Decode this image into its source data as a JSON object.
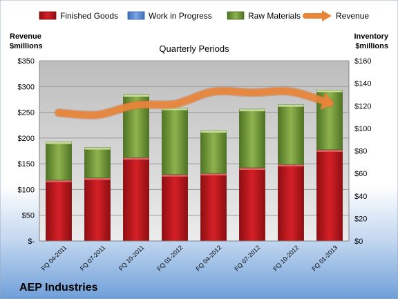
{
  "chart_data": {
    "type": "bar",
    "title": "Quarterly Periods",
    "company": "AEP Industries",
    "categories": [
      "FQ 04-2011",
      "FQ 07-2011",
      "FQ 10-2011",
      "FQ 01-2012",
      "FQ 04-2012",
      "FQ 07-2012",
      "FQ 10-2012",
      "FQ 01-2013"
    ],
    "left_axis": {
      "label_line1": "Revenue",
      "label_line2": "$millions",
      "ylim": [
        0,
        350
      ],
      "ticks": [
        0,
        50,
        100,
        150,
        200,
        250,
        300,
        350
      ],
      "tick_labels": [
        "$-",
        "$50",
        "$100",
        "$150",
        "$200",
        "$250",
        "$300",
        "$350"
      ]
    },
    "right_axis": {
      "label_line1": "Inventory",
      "label_line2": "$millions",
      "ylim": [
        0,
        160
      ],
      "ticks": [
        0,
        20,
        40,
        60,
        80,
        100,
        120,
        140,
        160
      ],
      "tick_labels": [
        "$0",
        "$20",
        "$40",
        "$60",
        "$80",
        "$100",
        "$120",
        "$140",
        "$160"
      ]
    },
    "series": [
      {
        "name": "Finished Goods",
        "kind": "bar",
        "axis": "right",
        "color": "#c0181e",
        "values": [
          54,
          56,
          74,
          59,
          60,
          65,
          68,
          81
        ]
      },
      {
        "name": "Work in Progress",
        "kind": "bar",
        "axis": "right",
        "color": "#5b8cd6",
        "values": [
          0,
          0,
          0,
          0,
          0,
          0,
          0,
          0
        ]
      },
      {
        "name": "Raw Materials",
        "kind": "bar",
        "axis": "right",
        "color": "#7aa33c",
        "values": [
          34,
          27,
          56,
          59,
          38,
          52,
          53,
          53
        ]
      },
      {
        "name": "Revenue",
        "kind": "line",
        "axis": "left",
        "color": "#e8853a",
        "values": [
          249,
          245,
          264,
          266,
          290,
          288,
          290,
          268
        ]
      }
    ],
    "legend_position": "top",
    "grid": true
  }
}
